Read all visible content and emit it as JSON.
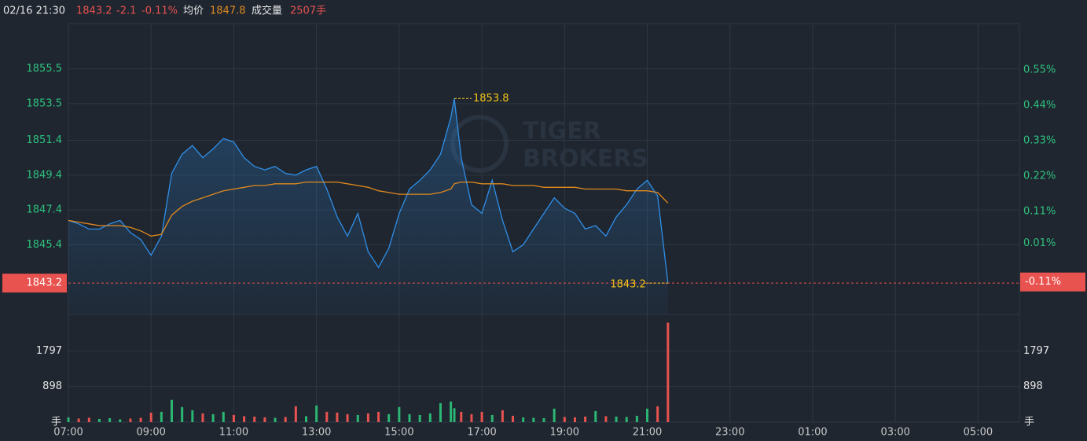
{
  "header": {
    "time": "02/16 21:30",
    "price": "1843.2",
    "change": "-2.1",
    "change_pct": "-0.11%",
    "avg_label": "均价",
    "avg": "1847.8",
    "volume_label": "成交量",
    "volume": "2507手"
  },
  "watermark": {
    "line1": "TIGER",
    "line2": "BROKERS"
  },
  "chart_data": {
    "type": "line",
    "x": [
      "07:00",
      "07:15",
      "07:30",
      "07:45",
      "08:00",
      "08:15",
      "08:30",
      "08:45",
      "09:00",
      "09:15",
      "09:30",
      "09:45",
      "10:00",
      "10:15",
      "10:30",
      "10:45",
      "11:00",
      "11:15",
      "11:30",
      "11:45",
      "12:00",
      "12:15",
      "12:30",
      "12:45",
      "13:00",
      "13:15",
      "13:30",
      "13:45",
      "14:00",
      "14:15",
      "14:30",
      "14:45",
      "15:00",
      "15:15",
      "15:30",
      "15:45",
      "16:00",
      "16:15",
      "16:20",
      "16:30",
      "16:45",
      "17:00",
      "17:15",
      "17:30",
      "17:45",
      "18:00",
      "18:15",
      "18:30",
      "18:45",
      "19:00",
      "19:15",
      "19:30",
      "19:45",
      "20:00",
      "20:15",
      "20:30",
      "20:45",
      "21:00",
      "21:15",
      "21:30"
    ],
    "series": [
      {
        "color": "#2f8fe8",
        "values": [
          1846.8,
          1846.6,
          1846.3,
          1846.3,
          1846.6,
          1846.8,
          1846.1,
          1845.7,
          1844.8,
          1845.9,
          1849.5,
          1850.6,
          1851.1,
          1850.4,
          1850.9,
          1851.5,
          1851.3,
          1850.4,
          1849.9,
          1849.7,
          1849.9,
          1849.5,
          1849.4,
          1849.7,
          1849.9,
          1848.6,
          1847.0,
          1845.9,
          1847.2,
          1845.0,
          1844.1,
          1845.2,
          1847.2,
          1848.6,
          1849.1,
          1849.7,
          1850.6,
          1852.7,
          1853.8,
          1850.4,
          1847.7,
          1847.2,
          1849.1,
          1846.8,
          1845.0,
          1845.4,
          1846.3,
          1847.2,
          1848.1,
          1847.5,
          1847.2,
          1846.3,
          1846.5,
          1845.9,
          1847.0,
          1847.7,
          1848.6,
          1849.1,
          1848.2,
          1843.2
        ]
      },
      {
        "color": "#e08a1e",
        "values": [
          1846.8,
          1846.7,
          1846.6,
          1846.5,
          1846.5,
          1846.5,
          1846.4,
          1846.2,
          1845.9,
          1846.0,
          1847.1,
          1847.6,
          1847.9,
          1848.1,
          1848.3,
          1848.5,
          1848.6,
          1848.7,
          1848.8,
          1848.8,
          1848.9,
          1848.9,
          1848.9,
          1849.0,
          1849.0,
          1849.0,
          1849.0,
          1848.9,
          1848.8,
          1848.7,
          1848.5,
          1848.4,
          1848.3,
          1848.3,
          1848.3,
          1848.3,
          1848.4,
          1848.6,
          1848.9,
          1849.0,
          1849.0,
          1848.9,
          1848.9,
          1848.9,
          1848.8,
          1848.8,
          1848.8,
          1848.7,
          1848.7,
          1848.7,
          1848.7,
          1848.6,
          1848.6,
          1848.6,
          1848.6,
          1848.5,
          1848.5,
          1848.5,
          1848.4,
          1847.8
        ]
      }
    ],
    "xlim": [
      "07:00",
      "06:00"
    ],
    "xticks": [
      "07:00",
      "09:00",
      "11:00",
      "13:00",
      "15:00",
      "17:00",
      "19:00",
      "21:00",
      "23:00",
      "01:00",
      "03:00",
      "05:00"
    ],
    "ylim": [
      1841.4,
      1858.1
    ],
    "yticks": [
      1855.5,
      1853.5,
      1851.4,
      1849.4,
      1847.4,
      1845.4
    ],
    "y2lim": [
      -0.211,
      0.694
    ],
    "y2ticks": [
      {
        "value": 0.55,
        "label": "0.55%"
      },
      {
        "value": 0.44,
        "label": "0.44%"
      },
      {
        "value": 0.33,
        "label": "0.33%"
      },
      {
        "value": 0.22,
        "label": "0.22%"
      },
      {
        "value": 0.11,
        "label": "0.11%"
      },
      {
        "value": 0.01,
        "label": "0.01%"
      }
    ],
    "last_pct": {
      "value": -0.11,
      "label": "-0.11%"
    },
    "up_color": "#2bb673",
    "down_color": "#e8524f",
    "grid": true,
    "volume": {
      "values": [
        120,
        90,
        110,
        80,
        100,
        70,
        90,
        110,
        240,
        260,
        560,
        380,
        300,
        220,
        200,
        260,
        180,
        150,
        140,
        120,
        110,
        130,
        400,
        150,
        420,
        260,
        240,
        200,
        180,
        220,
        260,
        200,
        380,
        200,
        180,
        220,
        480,
        520,
        350,
        260,
        200,
        260,
        180,
        300,
        160,
        120,
        110,
        100,
        340,
        130,
        120,
        140,
        280,
        150,
        140,
        130,
        160,
        340,
        400,
        2507
      ],
      "ylim": [
        0,
        2715
      ],
      "yticks": [
        1797,
        898
      ],
      "unit": "手"
    }
  }
}
